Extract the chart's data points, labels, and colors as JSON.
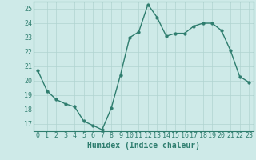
{
  "x": [
    0,
    1,
    2,
    3,
    4,
    5,
    6,
    7,
    8,
    9,
    10,
    11,
    12,
    13,
    14,
    15,
    16,
    17,
    18,
    19,
    20,
    21,
    22,
    23
  ],
  "y": [
    20.7,
    19.3,
    18.7,
    18.4,
    18.2,
    17.2,
    16.9,
    16.6,
    18.1,
    20.4,
    23.0,
    23.4,
    25.3,
    24.4,
    23.1,
    23.3,
    23.3,
    23.8,
    24.0,
    24.0,
    23.5,
    22.1,
    20.3,
    19.9
  ],
  "xlim": [
    -0.5,
    23.5
  ],
  "ylim": [
    16.5,
    25.5
  ],
  "yticks": [
    17,
    18,
    19,
    20,
    21,
    22,
    23,
    24,
    25
  ],
  "xticks": [
    0,
    1,
    2,
    3,
    4,
    5,
    6,
    7,
    8,
    9,
    10,
    11,
    12,
    13,
    14,
    15,
    16,
    17,
    18,
    19,
    20,
    21,
    22,
    23
  ],
  "xlabel": "Humidex (Indice chaleur)",
  "line_color": "#2e7d6e",
  "marker_color": "#2e7d6e",
  "bg_color": "#ceeae8",
  "grid_color": "#b0d4d0",
  "text_color": "#2e7d6e",
  "xlabel_fontsize": 7.0,
  "tick_fontsize": 6.0,
  "line_width": 1.0,
  "marker_size": 2.5
}
